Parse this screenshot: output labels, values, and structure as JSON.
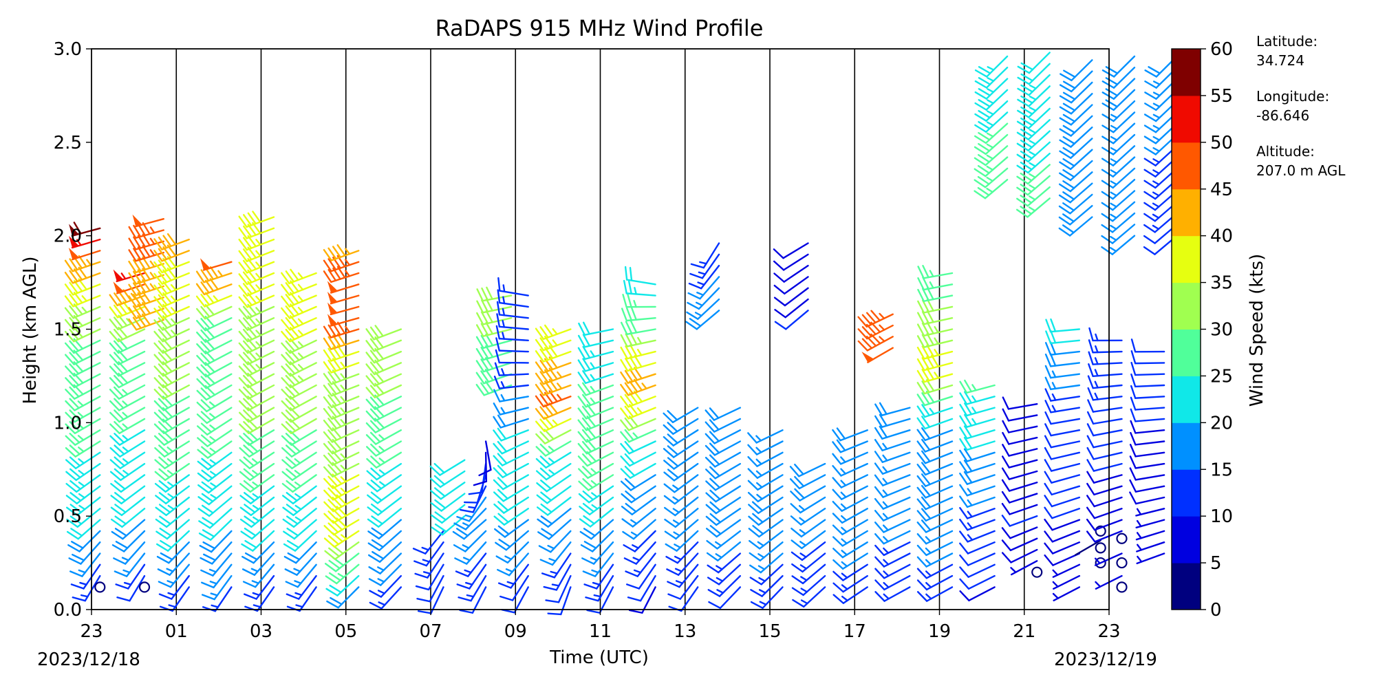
{
  "chart_data": {
    "type": "wind-barb-profile",
    "title": "RaDAPS 915 MHz Wind Profile",
    "xlabel": "Time (UTC)",
    "ylabel": "Height (km AGL)",
    "x_ticks": [
      "23",
      "01",
      "03",
      "05",
      "07",
      "09",
      "11",
      "13",
      "15",
      "17",
      "19",
      "21",
      "23"
    ],
    "date_start": "2023/12/18",
    "date_end": "2023/12/19",
    "y_ticks": [
      "0.0",
      "0.5",
      "1.0",
      "1.5",
      "2.0",
      "2.5",
      "3.0"
    ],
    "ylim": [
      0,
      3
    ],
    "colorbar": {
      "label": "Wind Speed (kts)",
      "ticks": [
        "0",
        "5",
        "10",
        "15",
        "20",
        "25",
        "30",
        "35",
        "40",
        "45",
        "50",
        "55",
        "60"
      ],
      "colors": [
        "#00007f",
        "#0000e0",
        "#0030ff",
        "#0090ff",
        "#10e8e8",
        "#50ff9a",
        "#a0ff50",
        "#e6ff10",
        "#ffb000",
        "#ff5800",
        "#f00a00",
        "#7f0000"
      ]
    },
    "columns": [
      {
        "t": 23.2,
        "h_min": 0.12,
        "h_max": 2.05,
        "profile": [
          [
            0,
            8,
            200
          ],
          [
            0.5,
            22,
            230
          ],
          [
            1.0,
            26,
            240
          ],
          [
            1.5,
            30,
            245
          ],
          [
            1.8,
            40,
            250
          ],
          [
            2.05,
            60,
            255
          ]
        ],
        "calm": [
          0.12
        ]
      },
      {
        "t": 24.25,
        "h_min": 0.12,
        "h_max": 1.85,
        "profile": [
          [
            0,
            8,
            200
          ],
          [
            0.5,
            20,
            230
          ],
          [
            1.0,
            25,
            240
          ],
          [
            1.5,
            30,
            245
          ],
          [
            1.85,
            58,
            255
          ]
        ],
        "calm": [
          0.12
        ]
      },
      {
        "t": 24.7,
        "h_min": 1.55,
        "h_max": 2.1,
        "profile": [
          [
            1.55,
            40,
            250
          ],
          [
            2.1,
            48,
            255
          ]
        ]
      },
      {
        "t": 25.3,
        "h_min": 0.12,
        "h_max": 2.0,
        "profile": [
          [
            0,
            10,
            210
          ],
          [
            0.5,
            22,
            230
          ],
          [
            1.0,
            28,
            240
          ],
          [
            1.5,
            33,
            245
          ],
          [
            2.0,
            42,
            250
          ]
        ]
      },
      {
        "t": 26.3,
        "h_min": 0.12,
        "h_max": 1.9,
        "profile": [
          [
            0,
            12,
            210
          ],
          [
            0.6,
            22,
            230
          ],
          [
            1.2,
            28,
            240
          ],
          [
            1.6,
            30,
            245
          ],
          [
            1.9,
            52,
            255
          ]
        ]
      },
      {
        "t": 27.3,
        "h_min": 0.12,
        "h_max": 2.1,
        "profile": [
          [
            0,
            10,
            210
          ],
          [
            0.5,
            22,
            230
          ],
          [
            1.0,
            30,
            240
          ],
          [
            1.5,
            34,
            245
          ],
          [
            2.1,
            38,
            250
          ]
        ]
      },
      {
        "t": 28.3,
        "h_min": 0.12,
        "h_max": 1.85,
        "profile": [
          [
            0,
            10,
            210
          ],
          [
            0.5,
            22,
            230
          ],
          [
            1.0,
            30,
            240
          ],
          [
            1.5,
            35,
            245
          ],
          [
            1.85,
            36,
            250
          ]
        ]
      },
      {
        "t": 29.3,
        "h_min": 0.12,
        "h_max": 1.95,
        "profile": [
          [
            0,
            12,
            220
          ],
          [
            0.5,
            40,
            240
          ],
          [
            0.9,
            32,
            245
          ],
          [
            1.3,
            35,
            250
          ],
          [
            1.6,
            50,
            255
          ],
          [
            1.95,
            44,
            250
          ]
        ]
      },
      {
        "t": 30.3,
        "h_min": 0.12,
        "h_max": 1.55,
        "profile": [
          [
            0,
            12,
            220
          ],
          [
            0.5,
            20,
            230
          ],
          [
            0.9,
            26,
            240
          ],
          [
            1.2,
            30,
            245
          ],
          [
            1.55,
            32,
            250
          ]
        ]
      },
      {
        "t": 31.3,
        "h_min": 0.12,
        "h_max": 0.45,
        "profile": [
          [
            0,
            10,
            200
          ],
          [
            0.45,
            14,
            220
          ]
        ]
      },
      {
        "t": 31.8,
        "h_min": 0.5,
        "h_max": 0.85,
        "profile": [
          [
            0.5,
            20,
            230
          ],
          [
            0.85,
            22,
            240
          ]
        ]
      },
      {
        "t": 32.3,
        "h_min": 0.12,
        "h_max": 0.9,
        "profile": [
          [
            0,
            10,
            200
          ],
          [
            0.5,
            18,
            230
          ],
          [
            0.9,
            8,
            170
          ]
        ]
      },
      {
        "t": 32.9,
        "h_min": 1.2,
        "h_max": 1.7,
        "profile": [
          [
            1.2,
            28,
            250
          ],
          [
            1.7,
            32,
            260
          ]
        ]
      },
      {
        "t": 33.3,
        "h_min": 0.12,
        "h_max": 1.7,
        "profile": [
          [
            0,
            8,
            200
          ],
          [
            0.5,
            20,
            235
          ],
          [
            0.9,
            22,
            245
          ],
          [
            1.3,
            12,
            270
          ],
          [
            1.7,
            14,
            280
          ]
        ]
      },
      {
        "t": 34.3,
        "h_min": 0.12,
        "h_max": 1.55,
        "profile": [
          [
            0,
            8,
            190
          ],
          [
            0.5,
            18,
            230
          ],
          [
            0.9,
            26,
            240
          ],
          [
            1.15,
            46,
            250
          ],
          [
            1.55,
            34,
            250
          ]
        ]
      },
      {
        "t": 35.3,
        "h_min": 0.12,
        "h_max": 1.55,
        "profile": [
          [
            0,
            10,
            200
          ],
          [
            0.5,
            20,
            230
          ],
          [
            0.9,
            30,
            245
          ],
          [
            1.2,
            26,
            250
          ],
          [
            1.55,
            20,
            260
          ]
        ]
      },
      {
        "t": 36.3,
        "h_min": 0.12,
        "h_max": 1.75,
        "profile": [
          [
            0,
            8,
            200
          ],
          [
            0.5,
            16,
            230
          ],
          [
            0.9,
            22,
            245
          ],
          [
            1.2,
            44,
            250
          ],
          [
            1.5,
            30,
            260
          ],
          [
            1.75,
            22,
            280
          ]
        ]
      },
      {
        "t": 37.3,
        "h_min": 0.12,
        "h_max": 1.1,
        "profile": [
          [
            0,
            10,
            210
          ],
          [
            0.5,
            16,
            230
          ],
          [
            1.1,
            20,
            240
          ]
        ]
      },
      {
        "t": 37.8,
        "h_min": 1.6,
        "h_max": 2.0,
        "profile": [
          [
            1.6,
            18,
            230
          ],
          [
            2.0,
            12,
            210
          ]
        ]
      },
      {
        "t": 38.3,
        "h_min": 0.12,
        "h_max": 1.1,
        "profile": [
          [
            0,
            10,
            220
          ],
          [
            0.5,
            18,
            235
          ],
          [
            1.1,
            20,
            245
          ]
        ]
      },
      {
        "t": 39.3,
        "h_min": 0.12,
        "h_max": 1.0,
        "profile": [
          [
            0,
            12,
            220
          ],
          [
            0.5,
            18,
            235
          ],
          [
            1.0,
            16,
            245
          ]
        ]
      },
      {
        "t": 39.9,
        "h_min": 1.6,
        "h_max": 2.0,
        "profile": [
          [
            1.6,
            10,
            230
          ],
          [
            2.0,
            8,
            240
          ]
        ]
      },
      {
        "t": 40.3,
        "h_min": 0.12,
        "h_max": 0.8,
        "profile": [
          [
            0,
            12,
            225
          ],
          [
            0.5,
            16,
            235
          ],
          [
            0.8,
            20,
            245
          ]
        ]
      },
      {
        "t": 41.3,
        "h_min": 0.12,
        "h_max": 1.0,
        "profile": [
          [
            0,
            14,
            235
          ],
          [
            0.5,
            16,
            240
          ],
          [
            1.0,
            18,
            250
          ]
        ]
      },
      {
        "t": 41.9,
        "h_min": 1.4,
        "h_max": 1.6,
        "profile": [
          [
            1.4,
            48,
            240
          ],
          [
            1.6,
            46,
            245
          ]
        ]
      },
      {
        "t": 42.3,
        "h_min": 0.12,
        "h_max": 1.1,
        "profile": [
          [
            0,
            12,
            240
          ],
          [
            0.5,
            16,
            245
          ],
          [
            1.1,
            18,
            255
          ]
        ]
      },
      {
        "t": 43.3,
        "h_min": 0.12,
        "h_max": 1.8,
        "profile": [
          [
            0,
            12,
            240
          ],
          [
            0.5,
            18,
            245
          ],
          [
            1.0,
            20,
            250
          ],
          [
            1.3,
            38,
            255
          ],
          [
            1.8,
            26,
            260
          ]
        ]
      },
      {
        "t": 44.3,
        "h_min": 0.12,
        "h_max": 1.2,
        "profile": [
          [
            0,
            8,
            240
          ],
          [
            0.5,
            14,
            250
          ],
          [
            1.2,
            26,
            255
          ]
        ]
      },
      {
        "t": 45.3,
        "h_min": 0.2,
        "h_max": 1.1,
        "profile": [
          [
            0.2,
            6,
            240
          ],
          [
            0.5,
            10,
            250
          ],
          [
            1.1,
            8,
            260
          ]
        ],
        "calm": [
          0.2
        ]
      },
      {
        "t": 46.3,
        "h_min": 0.12,
        "h_max": 1.5,
        "profile": [
          [
            0,
            5,
            240
          ],
          [
            0.5,
            10,
            250
          ],
          [
            1.0,
            12,
            260
          ],
          [
            1.5,
            22,
            265
          ]
        ]
      },
      {
        "t": 46.8,
        "h_min": 0.25,
        "h_max": 0.42,
        "profile": [
          [
            0.25,
            2,
            240
          ],
          [
            0.42,
            2,
            240
          ]
        ],
        "calm": [
          0.25,
          0.33,
          0.42
        ]
      },
      {
        "t": 47.3,
        "h_min": 0.12,
        "h_max": 1.45,
        "profile": [
          [
            0,
            5,
            240
          ],
          [
            0.5,
            8,
            250
          ],
          [
            1.0,
            12,
            260
          ],
          [
            1.45,
            14,
            270
          ]
        ],
        "calm": [
          0.12,
          0.25,
          0.38
        ]
      },
      {
        "t": 48.3,
        "h_min": 0.3,
        "h_max": 1.4,
        "profile": [
          [
            0.3,
            6,
            250
          ],
          [
            0.7,
            8,
            260
          ],
          [
            1.0,
            10,
            265
          ],
          [
            1.4,
            12,
            270
          ]
        ]
      },
      {
        "t": 44.6,
        "h_min": 2.3,
        "h_max": 3.0,
        "profile": [
          [
            2.3,
            26,
            230
          ],
          [
            3.0,
            24,
            225
          ]
        ]
      },
      {
        "t": 45.6,
        "h_min": 2.2,
        "h_max": 3.0,
        "profile": [
          [
            2.2,
            26,
            230
          ],
          [
            3.0,
            22,
            225
          ]
        ]
      },
      {
        "t": 46.6,
        "h_min": 2.1,
        "h_max": 3.0,
        "profile": [
          [
            2.1,
            18,
            230
          ],
          [
            3.0,
            18,
            225
          ]
        ]
      },
      {
        "t": 47.6,
        "h_min": 2.0,
        "h_max": 3.0,
        "profile": [
          [
            2.0,
            16,
            230
          ],
          [
            3.0,
            18,
            225
          ]
        ]
      },
      {
        "t": 48.6,
        "h_min": 2.0,
        "h_max": 3.0,
        "profile": [
          [
            2.0,
            12,
            230
          ],
          [
            3.0,
            18,
            225
          ]
        ]
      }
    ]
  },
  "site_info": {
    "latitude_label": "Latitude:",
    "latitude_value": "34.724",
    "longitude_label": "Longitude:",
    "longitude_value": "-86.646",
    "altitude_label": "Altitude:",
    "altitude_value": "207.0 m AGL"
  }
}
